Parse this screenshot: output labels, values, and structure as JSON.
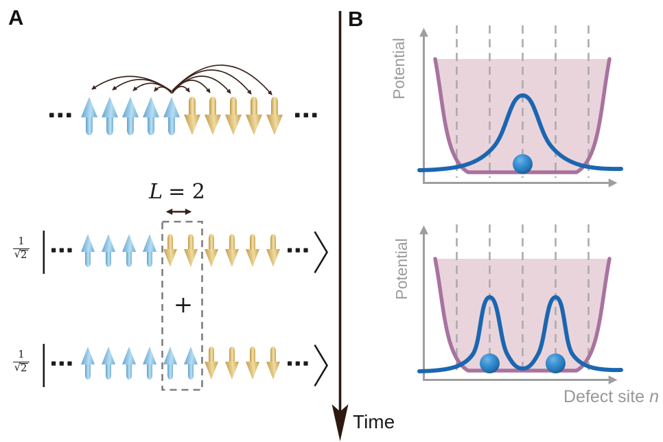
{
  "panel_a": {
    "label": "A",
    "top_chain": {
      "spins": [
        "up",
        "up",
        "up",
        "up",
        "up",
        "down",
        "down",
        "down",
        "down",
        "down"
      ]
    },
    "length_annotation": {
      "variable": "L",
      "equation": "= 2"
    },
    "plus": "+",
    "coefficient": {
      "numerator": "1",
      "radical": "√",
      "radicand": "2"
    },
    "kets": [
      {
        "spins": [
          "up",
          "up",
          "up",
          "up",
          "down",
          "down",
          "down",
          "down",
          "down",
          "down"
        ]
      },
      {
        "spins": [
          "up",
          "up",
          "up",
          "up",
          "up",
          "up",
          "down",
          "down",
          "down",
          "down"
        ]
      }
    ]
  },
  "time_axis": {
    "label": "Time"
  },
  "panel_b": {
    "label": "B",
    "plots": [
      {
        "ylabel": "Potential"
      },
      {
        "ylabel": "Potential",
        "xlabel": "Defect site",
        "xlabel_variable": "n"
      }
    ]
  },
  "colors": {
    "spin_up": "#8ec6e6",
    "spin_down": "#e6c87f",
    "interaction_arc": "#3a241c",
    "time_arrow": "#2c1a12",
    "axis_gray": "#9e9e9e",
    "gridline_gray": "#ababab",
    "label_gray": "#9b9b9b",
    "well_stroke": "#a8739f",
    "well_fill": "#e9d4dc",
    "wavefunction_blue": "#1b66b0",
    "particle_blue": "#2f86c8"
  },
  "chart_data": [
    {
      "type": "line",
      "panel": "B top",
      "ylabel": "Potential",
      "xlabel": "Defect site n",
      "x_sites": [
        -2,
        -1,
        0,
        1,
        2
      ],
      "grid": "vertical dashed at each site",
      "series": [
        {
          "name": "confining potential",
          "color": "#a8739f",
          "fill": "#e9d4dc",
          "shape": "flat-bottomed well"
        },
        {
          "name": "domain-wall wavefunction",
          "color": "#1b66b0",
          "shape": "single Gaussian peak",
          "peak_sites": [
            0
          ]
        }
      ],
      "particles": [
        {
          "site": 0,
          "color": "#2f86c8"
        }
      ]
    },
    {
      "type": "line",
      "panel": "B bottom",
      "ylabel": "Potential",
      "xlabel": "Defect site n",
      "x_sites": [
        -2,
        -1,
        0,
        1,
        2
      ],
      "grid": "vertical dashed at each site",
      "series": [
        {
          "name": "confining potential",
          "color": "#a8739f",
          "fill": "#e9d4dc",
          "shape": "flat-bottomed well"
        },
        {
          "name": "domain-wall wavefunction",
          "color": "#1b66b0",
          "shape": "symmetric double peak",
          "peak_sites": [
            -1,
            1
          ]
        }
      ],
      "particles": [
        {
          "site": -1,
          "color": "#2f86c8"
        },
        {
          "site": 1,
          "color": "#2f86c8"
        }
      ]
    }
  ]
}
